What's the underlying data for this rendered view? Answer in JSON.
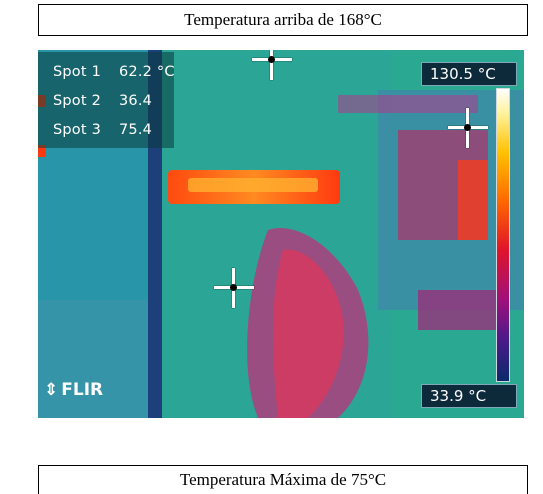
{
  "captions": {
    "top": "Temperatura arriba de 168°C",
    "bottom": "Temperatura Máxima de 75°C"
  },
  "thermal_image": {
    "spots": [
      {
        "label": "Spot 1",
        "value": "62.2 °C"
      },
      {
        "label": "Spot 2",
        "value": "36.4"
      },
      {
        "label": "Spot 3",
        "value": "75.4"
      }
    ],
    "range_max": "130.5 °C",
    "range_min": "33.9 °C",
    "brand": "FLIR",
    "colors": {
      "background": "#26a98e",
      "hot": "#ff3a10",
      "warm": "#d0206a",
      "cool": "#1a5a9a"
    }
  }
}
